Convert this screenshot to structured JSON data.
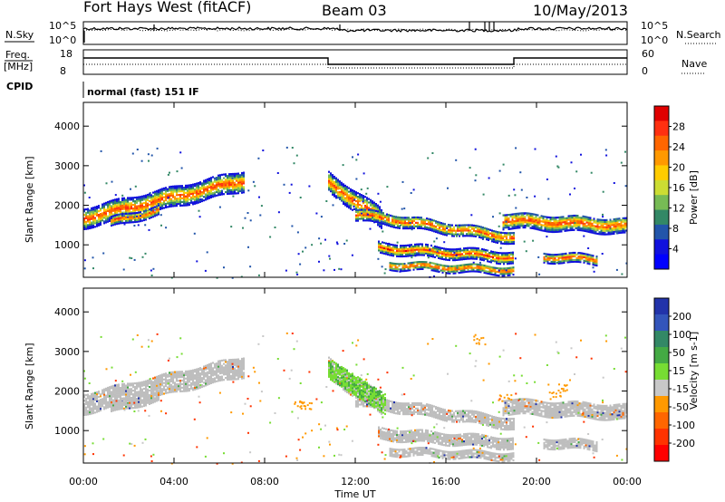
{
  "header": {
    "radar": "Fort Hays West (fitACF)",
    "beam": "Beam 03",
    "date": "10/May/2013"
  },
  "top_panels": {
    "nsky_label": "N.Sky",
    "nsky_ticks": [
      "10^5",
      "10^0"
    ],
    "nsearch_label": "N.Search",
    "freq_label_1": "Freq.",
    "freq_label_2": "[MHz]",
    "freq_ticks": [
      "18",
      "8"
    ],
    "nave_label": "Nave",
    "nave_ticks": [
      "60",
      "0"
    ],
    "cpid_label": "CPID",
    "cpid_text": "normal (fast) 151 IF"
  },
  "chart_data": [
    {
      "type": "heatmap",
      "name_hint": "power",
      "ylabel": "Slant Range [km]",
      "xlabel": "",
      "x_ticks": [
        "00:00",
        "04:00",
        "08:00",
        "12:00",
        "16:00",
        "20:00",
        "00:00"
      ],
      "y_ticks": [
        1000,
        2000,
        3000,
        4000
      ],
      "x_range_hours": [
        0,
        24
      ],
      "ylim": [
        180,
        4600
      ],
      "colorbar": {
        "label": "Power [dB]",
        "ticks": [
          "28",
          "24",
          "20",
          "16",
          "12",
          "8",
          "4"
        ],
        "colors": [
          "#e00000",
          "#ff3010",
          "#ff6600",
          "#ff9900",
          "#ffcc00",
          "#ccdd33",
          "#77bb55",
          "#338866",
          "#2255aa",
          "#1111dd",
          "#0000ff"
        ]
      },
      "echo_bands": [
        {
          "start_h": 0.0,
          "end_h": 7.1,
          "r0": 1700,
          "r1": 2650,
          "halfwidth": 250
        },
        {
          "start_h": 1.2,
          "end_h": 3.3,
          "r0": 1600,
          "r1": 1900,
          "halfwidth": 120
        },
        {
          "start_h": 10.8,
          "end_h": 13.2,
          "r0": 2600,
          "r1": 1650,
          "halfwidth": 250
        },
        {
          "start_h": 12.0,
          "end_h": 19.0,
          "r0": 1800,
          "r1": 1200,
          "halfwidth": 150
        },
        {
          "start_h": 13.0,
          "end_h": 19.0,
          "r0": 950,
          "r1": 700,
          "halfwidth": 140
        },
        {
          "start_h": 13.5,
          "end_h": 19.0,
          "r0": 520,
          "r1": 380,
          "halfwidth": 110
        },
        {
          "start_h": 18.5,
          "end_h": 24.0,
          "r0": 1650,
          "r1": 1500,
          "halfwidth": 200
        },
        {
          "start_h": 20.3,
          "end_h": 22.7,
          "r0": 720,
          "r1": 650,
          "halfwidth": 120
        }
      ]
    },
    {
      "type": "heatmap",
      "name_hint": "velocity",
      "ylabel": "Slant Range [km]",
      "xlabel": "Time UT",
      "x_ticks": [
        "00:00",
        "04:00",
        "08:00",
        "12:00",
        "16:00",
        "20:00",
        "00:00"
      ],
      "y_ticks": [
        1000,
        2000,
        3000,
        4000
      ],
      "x_range_hours": [
        0,
        24
      ],
      "ylim": [
        180,
        4600
      ],
      "colorbar": {
        "label": "Velocity [m s-1]",
        "ticks": [
          "200",
          "100",
          "50",
          "15",
          "-15",
          "-50",
          "-100",
          "-200"
        ],
        "colors": [
          "#2233aa",
          "#3355bb",
          "#338866",
          "#44aa44",
          "#77dd33",
          "#c8c8c8",
          "#ff9900",
          "#ff6600",
          "#ff3300",
          "#ff0000"
        ]
      },
      "ground_scatter_color": "#bebebe",
      "green_band": {
        "start_h": 10.8,
        "end_h": 13.3,
        "r0": 2600,
        "r1": 1700,
        "halfwidth": 260
      }
    }
  ]
}
